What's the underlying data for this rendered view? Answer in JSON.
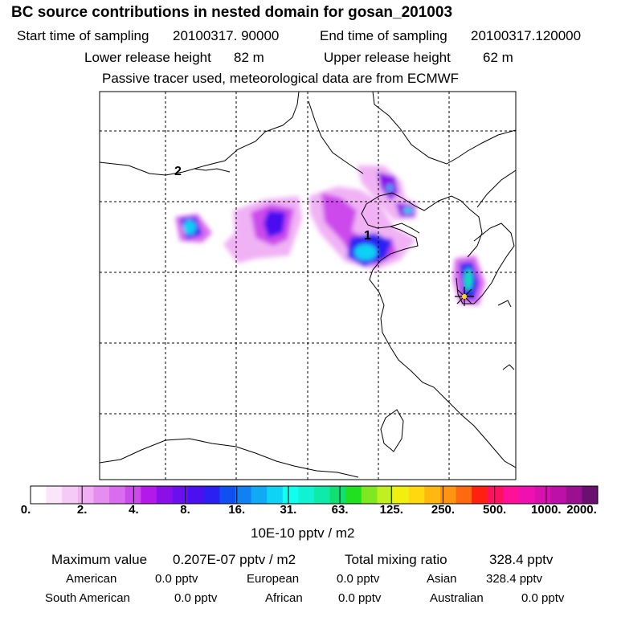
{
  "header": {
    "title": "BC  source contributions in nested domain for gosan_201003",
    "start_label": "Start time of sampling",
    "start_value": "20100317. 90000",
    "end_label": "End time of sampling",
    "end_value": "20100317.120000",
    "lower_label": "Lower release height",
    "lower_value": "82 m",
    "upper_label": "Upper release height",
    "upper_value": "62 m",
    "note": "Passive tracer used, meteorological data are from ECMWF"
  },
  "map": {
    "markers": [
      {
        "label": "1"
      },
      {
        "label": "2"
      }
    ],
    "receptor": "star-icon",
    "grid": true
  },
  "colorbar": {
    "labels": [
      "0.",
      "2.",
      "4.",
      "8.",
      "16.",
      "31.",
      "63.",
      "125.",
      "250.",
      "500.",
      "1000.",
      "2000."
    ],
    "unit": "10E-10 pptv / m2",
    "colors": [
      "#ffffff",
      "#fbe5fb",
      "#f6caf6",
      "#f1aef3",
      "#e58ef0",
      "#d96dee",
      "#cc49ec",
      "#b519ea",
      "#8a10ea",
      "#6a10ee",
      "#4a10f0",
      "#2a20f2",
      "#1050f0",
      "#1080f2",
      "#10aaf4",
      "#10d2f4",
      "#10ffee",
      "#10f2d0",
      "#10eaa8",
      "#10e070",
      "#20e020",
      "#80e820",
      "#c0f020",
      "#f0f010",
      "#ffd810",
      "#ffb810",
      "#ff9410",
      "#ff6a10",
      "#ff2010",
      "#ff1060",
      "#ff1098",
      "#ee10b0",
      "#d810b0",
      "#bc10a8",
      "#9a1090",
      "#6a1070"
    ]
  },
  "footer": {
    "max_label": "Maximum value",
    "max_value": "0.207E-07 pptv / m2",
    "total_label": "Total mixing ratio",
    "total_value": "328.4 pptv",
    "regions": [
      {
        "name": "American",
        "value": "0.0 pptv"
      },
      {
        "name": "European",
        "value": "0.0 pptv"
      },
      {
        "name": "Asian",
        "value": "328.4 pptv"
      },
      {
        "name": "South American",
        "value": "0.0 pptv"
      },
      {
        "name": "African",
        "value": "0.0 pptv"
      },
      {
        "name": "Australian",
        "value": "0.0 pptv"
      }
    ]
  }
}
